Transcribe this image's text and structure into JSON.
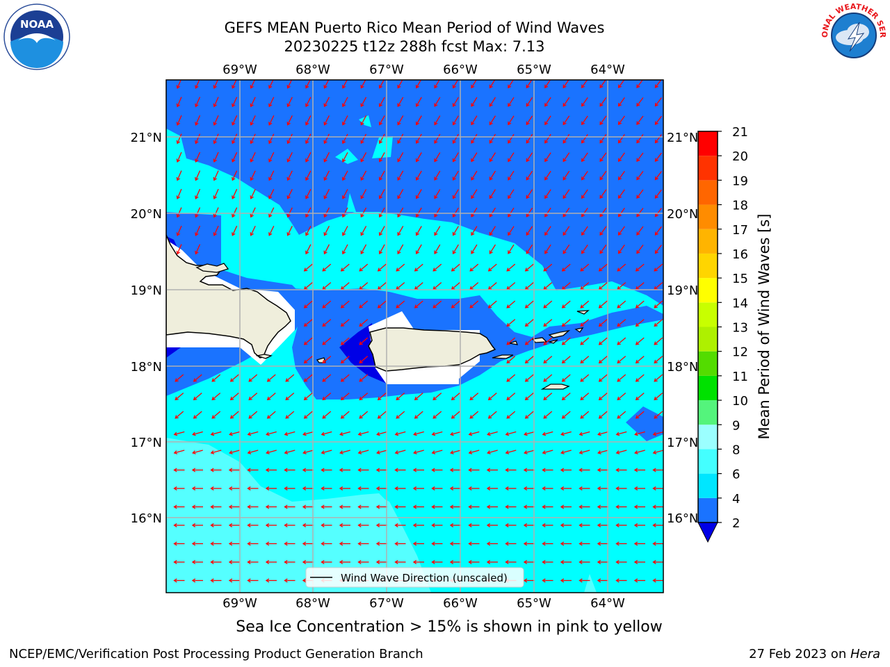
{
  "title": {
    "line1": "GEFS MEAN Puerto Rico Mean Period of Wind Waves",
    "line2": "20230225 t12z 288h fcst   Max: 7.13"
  },
  "map": {
    "lon_labels": [
      "69°W",
      "68°W",
      "67°W",
      "66°W",
      "65°W",
      "64°W"
    ],
    "lat_labels": [
      "21°N",
      "20°N",
      "19°N",
      "18°N",
      "17°N",
      "16°N"
    ],
    "legend_label": "Wind Wave Direction (unscaled)"
  },
  "colorbar": {
    "label": "Mean Period of Wind Waves [s]",
    "ticks": [
      "21",
      "20",
      "19",
      "18",
      "17",
      "16",
      "15",
      "14",
      "13",
      "12",
      "11",
      "10",
      "9",
      "8",
      "6",
      "4",
      "2"
    ],
    "colors": [
      "#0000e6",
      "#1a73ff",
      "#00e6ff",
      "#44ffff",
      "#9bffff",
      "#54f47c",
      "#00e100",
      "#53dc00",
      "#aef000",
      "#c8ff00",
      "#ffff00",
      "#ffd500",
      "#ffb400",
      "#ff8c00",
      "#ff6600",
      "#ff3300",
      "#ff0000"
    ]
  },
  "field_colors": {
    "period_2_4": "#1a73ff",
    "period_4_6": "#00ffff",
    "period_6_8": "#55ffff",
    "period_below_2": "#0000e6",
    "land": "#efeedc",
    "arrow": "#ff0000"
  },
  "subcaption": "Sea Ice Concentration > 15% is shown in pink to yellow",
  "footer": {
    "left": "NCEP/EMC/Verification Post Processing Product Generation Branch",
    "right_prefix": "27 Feb 2023 on ",
    "right_host": "Hera"
  },
  "logos": {
    "noaa": "NOAA",
    "nws": "NATIONAL WEATHER SERVICE"
  }
}
